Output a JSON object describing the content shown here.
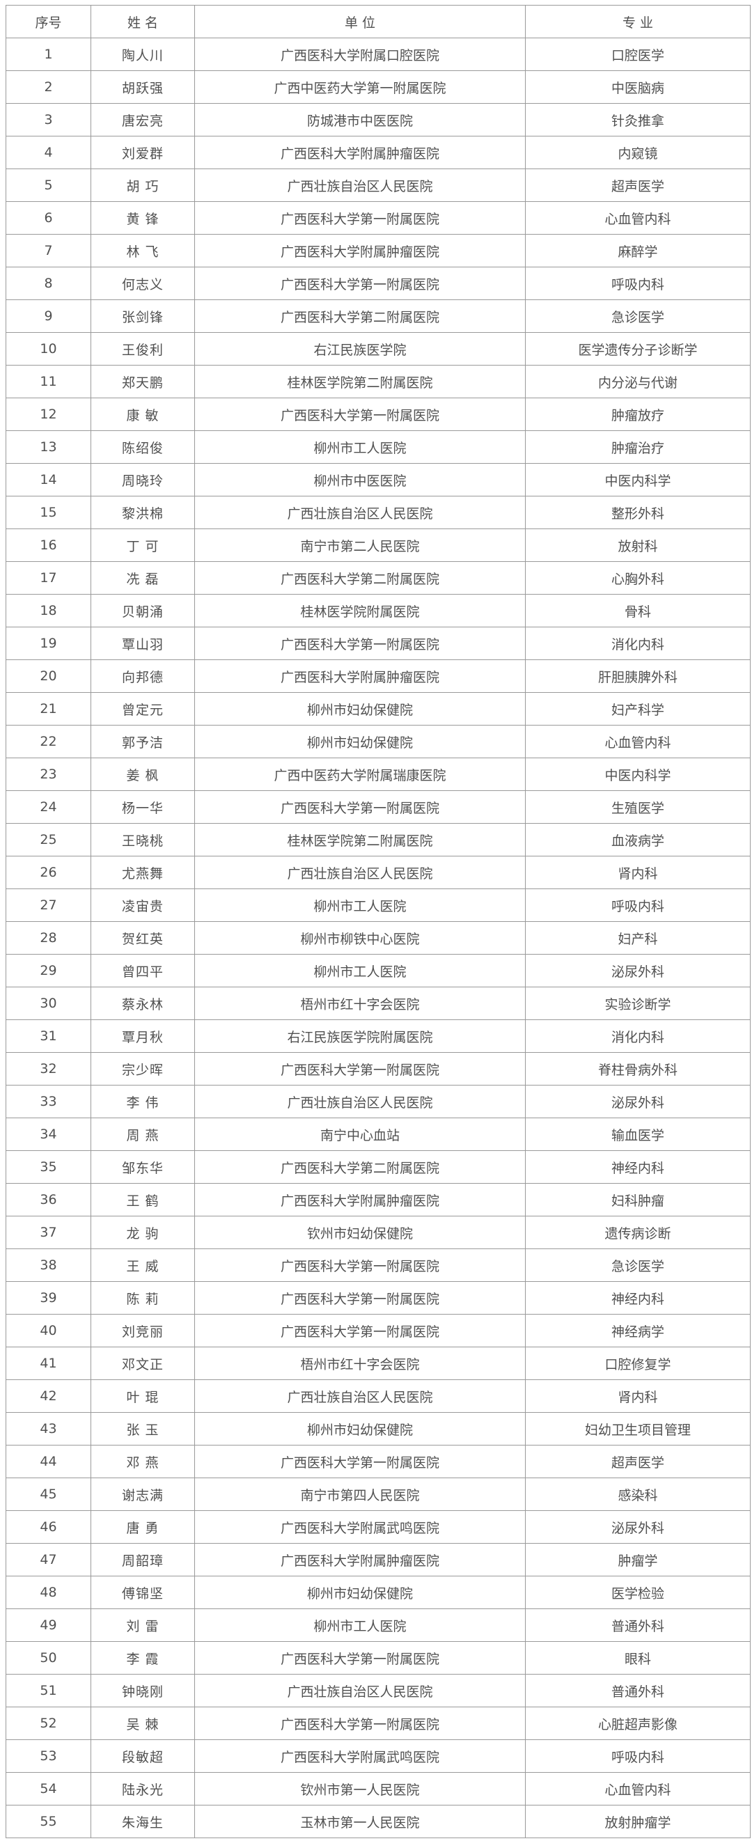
{
  "table": {
    "headers": [
      "序号",
      "姓 名",
      "单 位",
      "专 业"
    ],
    "rows": [
      [
        "1",
        "陶人川",
        "广西医科大学附属口腔医院",
        "口腔医学"
      ],
      [
        "2",
        "胡跃强",
        "广西中医药大学第一附属医院",
        "中医脑病"
      ],
      [
        "3",
        "唐宏亮",
        "防城港市中医医院",
        "针灸推拿"
      ],
      [
        "4",
        "刘爱群",
        "广西医科大学附属肿瘤医院",
        "内窥镜"
      ],
      [
        "5",
        "胡 巧",
        "广西壮族自治区人民医院",
        "超声医学"
      ],
      [
        "6",
        "黄 锋",
        "广西医科大学第一附属医院",
        "心血管内科"
      ],
      [
        "7",
        "林 飞",
        "广西医科大学附属肿瘤医院",
        "麻醉学"
      ],
      [
        "8",
        "何志义",
        "广西医科大学第一附属医院",
        "呼吸内科"
      ],
      [
        "9",
        "张剑锋",
        "广西医科大学第二附属医院",
        "急诊医学"
      ],
      [
        "10",
        "王俊利",
        "右江民族医学院",
        "医学遗传分子诊断学"
      ],
      [
        "11",
        "郑天鹏",
        "桂林医学院第二附属医院",
        "内分泌与代谢"
      ],
      [
        "12",
        "康 敏",
        "广西医科大学第一附属医院",
        "肿瘤放疗"
      ],
      [
        "13",
        "陈绍俊",
        "柳州市工人医院",
        "肿瘤治疗"
      ],
      [
        "14",
        "周晓玲",
        "柳州市中医医院",
        "中医内科学"
      ],
      [
        "15",
        "黎洪棉",
        "广西壮族自治区人民医院",
        "整形外科"
      ],
      [
        "16",
        "丁 可",
        "南宁市第二人民医院",
        "放射科"
      ],
      [
        "17",
        "冼 磊",
        "广西医科大学第二附属医院",
        "心胸外科"
      ],
      [
        "18",
        "贝朝涌",
        "桂林医学院附属医院",
        "骨科"
      ],
      [
        "19",
        "覃山羽",
        "广西医科大学第一附属医院",
        "消化内科"
      ],
      [
        "20",
        "向邦德",
        "广西医科大学附属肿瘤医院",
        "肝胆胰脾外科"
      ],
      [
        "21",
        "曾定元",
        "柳州市妇幼保健院",
        "妇产科学"
      ],
      [
        "22",
        "郭予洁",
        "柳州市妇幼保健院",
        "心血管内科"
      ],
      [
        "23",
        "姜 枫",
        "广西中医药大学附属瑞康医院",
        "中医内科学"
      ],
      [
        "24",
        "杨一华",
        "广西医科大学第一附属医院",
        "生殖医学"
      ],
      [
        "25",
        "王晓桃",
        "桂林医学院第二附属医院",
        "血液病学"
      ],
      [
        "26",
        "尤燕舞",
        "广西壮族自治区人民医院",
        "肾内科"
      ],
      [
        "27",
        "凌宙贵",
        "柳州市工人医院",
        "呼吸内科"
      ],
      [
        "28",
        "贺红英",
        "柳州市柳铁中心医院",
        "妇产科"
      ],
      [
        "29",
        "曾四平",
        "柳州市工人医院",
        "泌尿外科"
      ],
      [
        "30",
        "蔡永林",
        "梧州市红十字会医院",
        "实验诊断学"
      ],
      [
        "31",
        "覃月秋",
        "右江民族医学院附属医院",
        "消化内科"
      ],
      [
        "32",
        "宗少晖",
        "广西医科大学第一附属医院",
        "脊柱骨病外科"
      ],
      [
        "33",
        "李 伟",
        "广西壮族自治区人民医院",
        "泌尿外科"
      ],
      [
        "34",
        "周 燕",
        "南宁中心血站",
        "输血医学"
      ],
      [
        "35",
        "邹东华",
        "广西医科大学第二附属医院",
        "神经内科"
      ],
      [
        "36",
        "王 鹤",
        "广西医科大学附属肿瘤医院",
        "妇科肿瘤"
      ],
      [
        "37",
        "龙 驹",
        "钦州市妇幼保健院",
        "遗传病诊断"
      ],
      [
        "38",
        "王 威",
        "广西医科大学第一附属医院",
        "急诊医学"
      ],
      [
        "39",
        "陈 莉",
        "广西医科大学第一附属医院",
        "神经内科"
      ],
      [
        "40",
        "刘竞丽",
        "广西医科大学第一附属医院",
        "神经病学"
      ],
      [
        "41",
        "邓文正",
        "梧州市红十字会医院",
        "口腔修复学"
      ],
      [
        "42",
        "叶 琨",
        "广西壮族自治区人民医院",
        "肾内科"
      ],
      [
        "43",
        "张 玉",
        "柳州市妇幼保健院",
        "妇幼卫生项目管理"
      ],
      [
        "44",
        "邓 燕",
        "广西医科大学第一附属医院",
        "超声医学"
      ],
      [
        "45",
        "谢志满",
        "南宁市第四人民医院",
        "感染科"
      ],
      [
        "46",
        "唐 勇",
        "广西医科大学附属武鸣医院",
        "泌尿外科"
      ],
      [
        "47",
        "周韶璋",
        "广西医科大学附属肿瘤医院",
        "肿瘤学"
      ],
      [
        "48",
        "傅锦坚",
        "柳州市妇幼保健院",
        "医学检验"
      ],
      [
        "49",
        "刘 雷",
        "柳州市工人医院",
        "普通外科"
      ],
      [
        "50",
        "李 霞",
        "广西医科大学第一附属医院",
        "眼科"
      ],
      [
        "51",
        "钟晓刚",
        "广西壮族自治区人民医院",
        "普通外科"
      ],
      [
        "52",
        "吴 棘",
        "广西医科大学第一附属医院",
        "心脏超声影像"
      ],
      [
        "53",
        "段敏超",
        "广西医科大学附属武鸣医院",
        "呼吸内科"
      ],
      [
        "54",
        "陆永光",
        "钦州市第一人民医院",
        "心血管内科"
      ],
      [
        "55",
        "朱海生",
        "玉林市第一人民医院",
        "放射肿瘤学"
      ]
    ]
  }
}
